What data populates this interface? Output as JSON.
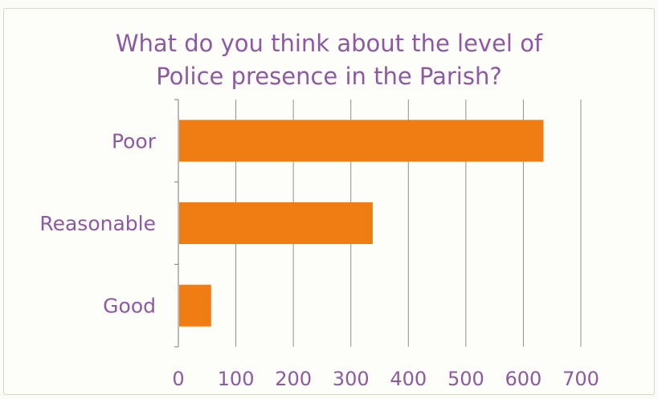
{
  "chart_data": {
    "type": "bar",
    "orientation": "horizontal",
    "title": "What do you think about the level of Police presence in the Parish?",
    "title_lines": [
      "What do you think about the level of",
      "Police presence in the Parish?"
    ],
    "categories": [
      "Poor",
      "Reasonable",
      "Good"
    ],
    "values": [
      635,
      338,
      57
    ],
    "xlim": [
      0,
      700
    ],
    "xticks": [
      0,
      100,
      200,
      300,
      400,
      500,
      600,
      700
    ],
    "xlabel": "",
    "ylabel": "",
    "grid": "vertical",
    "legend": "none",
    "bar_color": "#f07d13",
    "text_color": "#8e59a3",
    "grid_color": "#8f8f8f"
  }
}
